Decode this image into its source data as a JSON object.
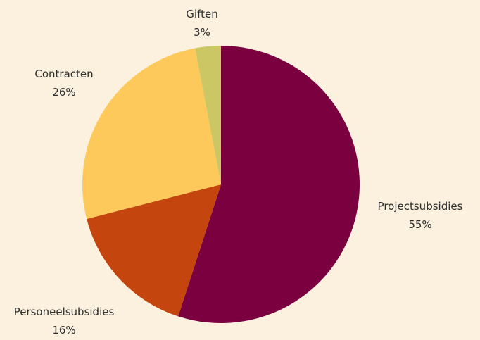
{
  "chart_data": {
    "type": "pie",
    "slices": [
      {
        "label": "Projectsubsidies",
        "value": 55,
        "value_label": "55%",
        "color": "#7b0040"
      },
      {
        "label": "Personeelsubsidies",
        "value": 16,
        "value_label": "16%",
        "color": "#c4450e"
      },
      {
        "label": "Contracten",
        "value": 26,
        "value_label": "26%",
        "color": "#fcc95a"
      },
      {
        "label": "Giften",
        "value": 3,
        "value_label": "3%",
        "color": "#ccc765"
      }
    ],
    "start_angle_deg": 0,
    "direction": "clockwise",
    "legend": "none",
    "background": "#fbf1de"
  }
}
